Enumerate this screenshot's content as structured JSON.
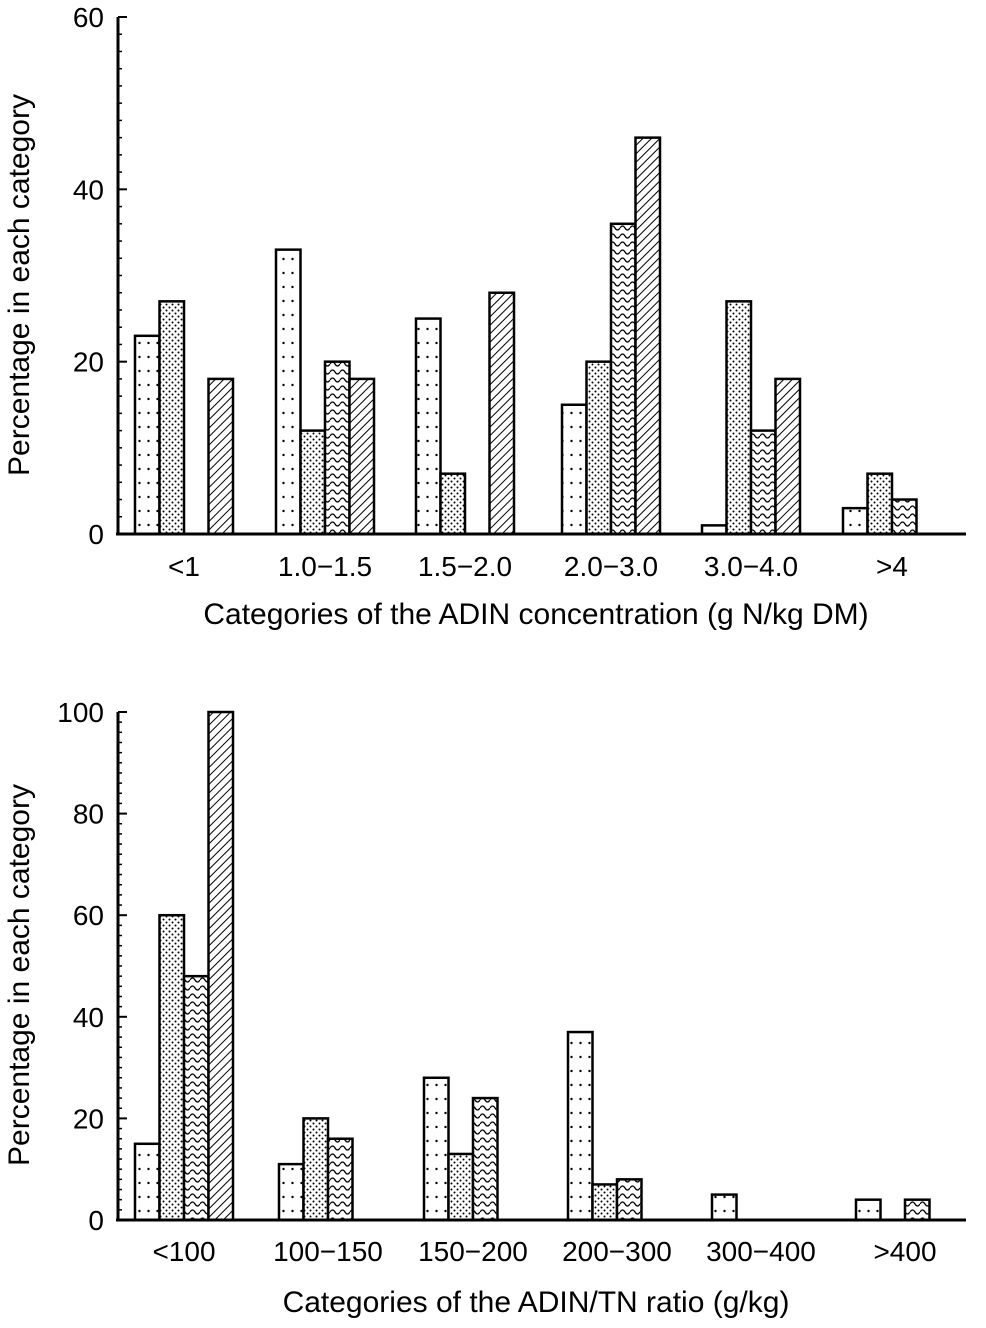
{
  "chart_data": [
    {
      "type": "bar",
      "xlabel": "Categories of the ADIN concentration (g N/kg DM)",
      "ylabel": "Percentage in each category",
      "ylim": [
        0,
        60
      ],
      "yticks": [
        "0",
        "20",
        "40",
        "60"
      ],
      "categories": [
        "<1",
        "1.0−1.5",
        "1.5−2.0",
        "2.0−3.0",
        "3.0−4.0",
        ">4"
      ],
      "grid": false,
      "legend": "none",
      "series": [
        {
          "pattern": "sparse-dots",
          "values": [
            23,
            33,
            25,
            15,
            1,
            3
          ]
        },
        {
          "pattern": "dense-dots",
          "values": [
            27,
            12,
            7,
            20,
            27,
            7
          ]
        },
        {
          "pattern": "waves",
          "values": [
            0,
            20,
            0,
            36,
            12,
            4
          ]
        },
        {
          "pattern": "diagonal-hatch",
          "values": [
            18,
            18,
            28,
            46,
            18,
            0
          ]
        }
      ]
    },
    {
      "type": "bar",
      "xlabel": "Categories of the ADIN/TN ratio (g/kg)",
      "ylabel": "Percentage in each category",
      "ylim": [
        0,
        100
      ],
      "yticks": [
        "0",
        "20",
        "40",
        "60",
        "80",
        "100"
      ],
      "categories": [
        "<100",
        "100−150",
        "150−200",
        "200−300",
        "300−400",
        ">400"
      ],
      "grid": false,
      "legend": "none",
      "series": [
        {
          "pattern": "sparse-dots",
          "values": [
            15,
            11,
            28,
            37,
            5,
            4
          ]
        },
        {
          "pattern": "dense-dots",
          "values": [
            60,
            20,
            13,
            7,
            0,
            0
          ]
        },
        {
          "pattern": "waves",
          "values": [
            48,
            16,
            24,
            8,
            0,
            4
          ]
        },
        {
          "pattern": "diagonal-hatch",
          "values": [
            100,
            0,
            0,
            0,
            0,
            0
          ]
        }
      ]
    }
  ]
}
